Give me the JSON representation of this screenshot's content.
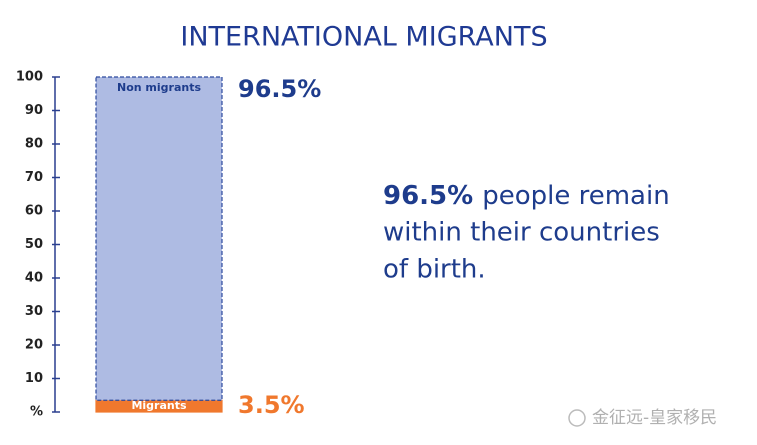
{
  "chart_data": {
    "type": "stacked-bar",
    "title": "INTERNATIONAL MIGRANTS",
    "categories": [
      null
    ],
    "series": [
      {
        "name": "Migrants",
        "color": "#f0782d",
        "values": [
          3.5
        ],
        "value_labels": [
          "3.5%"
        ]
      },
      {
        "name": "Non migrants",
        "color": "#aebbe3",
        "values": [
          96.5
        ],
        "value_labels": [
          "96.5%"
        ]
      }
    ],
    "ylim": [
      0,
      100
    ],
    "yticks": [
      {
        "value": 0,
        "label": "%"
      },
      10,
      20,
      30,
      40,
      50,
      60,
      70,
      80,
      90,
      100
    ],
    "annotation": {
      "emphasis": "96.5%",
      "lines": [
        "people remain",
        "within their countries",
        "of birth."
      ]
    },
    "watermark": "金征远-皇家移民"
  }
}
